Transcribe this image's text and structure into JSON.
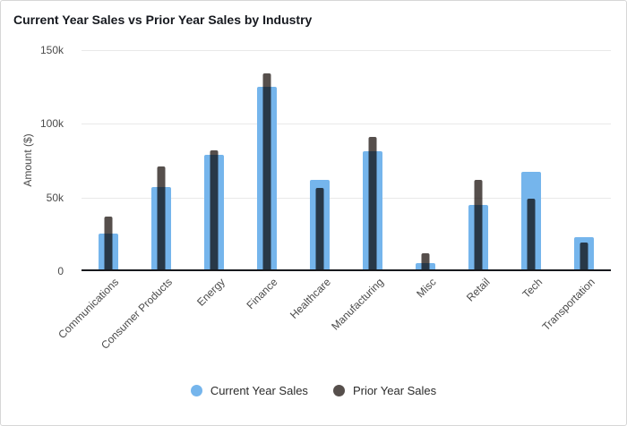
{
  "title": "Current Year Sales vs Prior Year Sales by Industry",
  "colors": {
    "current_series": "#75b5ec",
    "prior_series": "#564f4c",
    "gridline": "#e9e9e9",
    "axis_line": "#17191d",
    "title_text": "#16191f",
    "tick_text": "#4b4b4b"
  },
  "chart_data": {
    "type": "bar",
    "title": "Current Year Sales vs Prior Year Sales by Industry",
    "categories": [
      "Communications",
      "Consumer Products",
      "Energy",
      "Finance",
      "Healthcare",
      "Manufacturing",
      "Misc",
      "Retail",
      "Tech",
      "Transportation"
    ],
    "series": [
      {
        "name": "Current Year Sales",
        "color": "#75b5ec",
        "values": [
          24000,
          56000,
          78000,
          124000,
          61000,
          80000,
          4000,
          44000,
          66000,
          22000
        ]
      },
      {
        "name": "Prior Year Sales",
        "color": "#564f4c",
        "values": [
          36000,
          70000,
          81000,
          133000,
          55000,
          90000,
          11000,
          61000,
          48000,
          18000
        ]
      }
    ],
    "xlabel": "",
    "ylabel": "Amount ($)",
    "ylim": [
      0,
      150000
    ],
    "yticks": [
      {
        "value": 0,
        "label": "0"
      },
      {
        "value": 50000,
        "label": "50k"
      },
      {
        "value": 100000,
        "label": "100k"
      },
      {
        "value": 150000,
        "label": "150k"
      }
    ],
    "grid": true,
    "legend_position": "bottom",
    "bar_style": "overlapped"
  },
  "legend": {
    "items": [
      {
        "label": "Current Year Sales",
        "color": "#75b5ec"
      },
      {
        "label": "Prior Year Sales",
        "color": "#564f4c"
      }
    ]
  }
}
